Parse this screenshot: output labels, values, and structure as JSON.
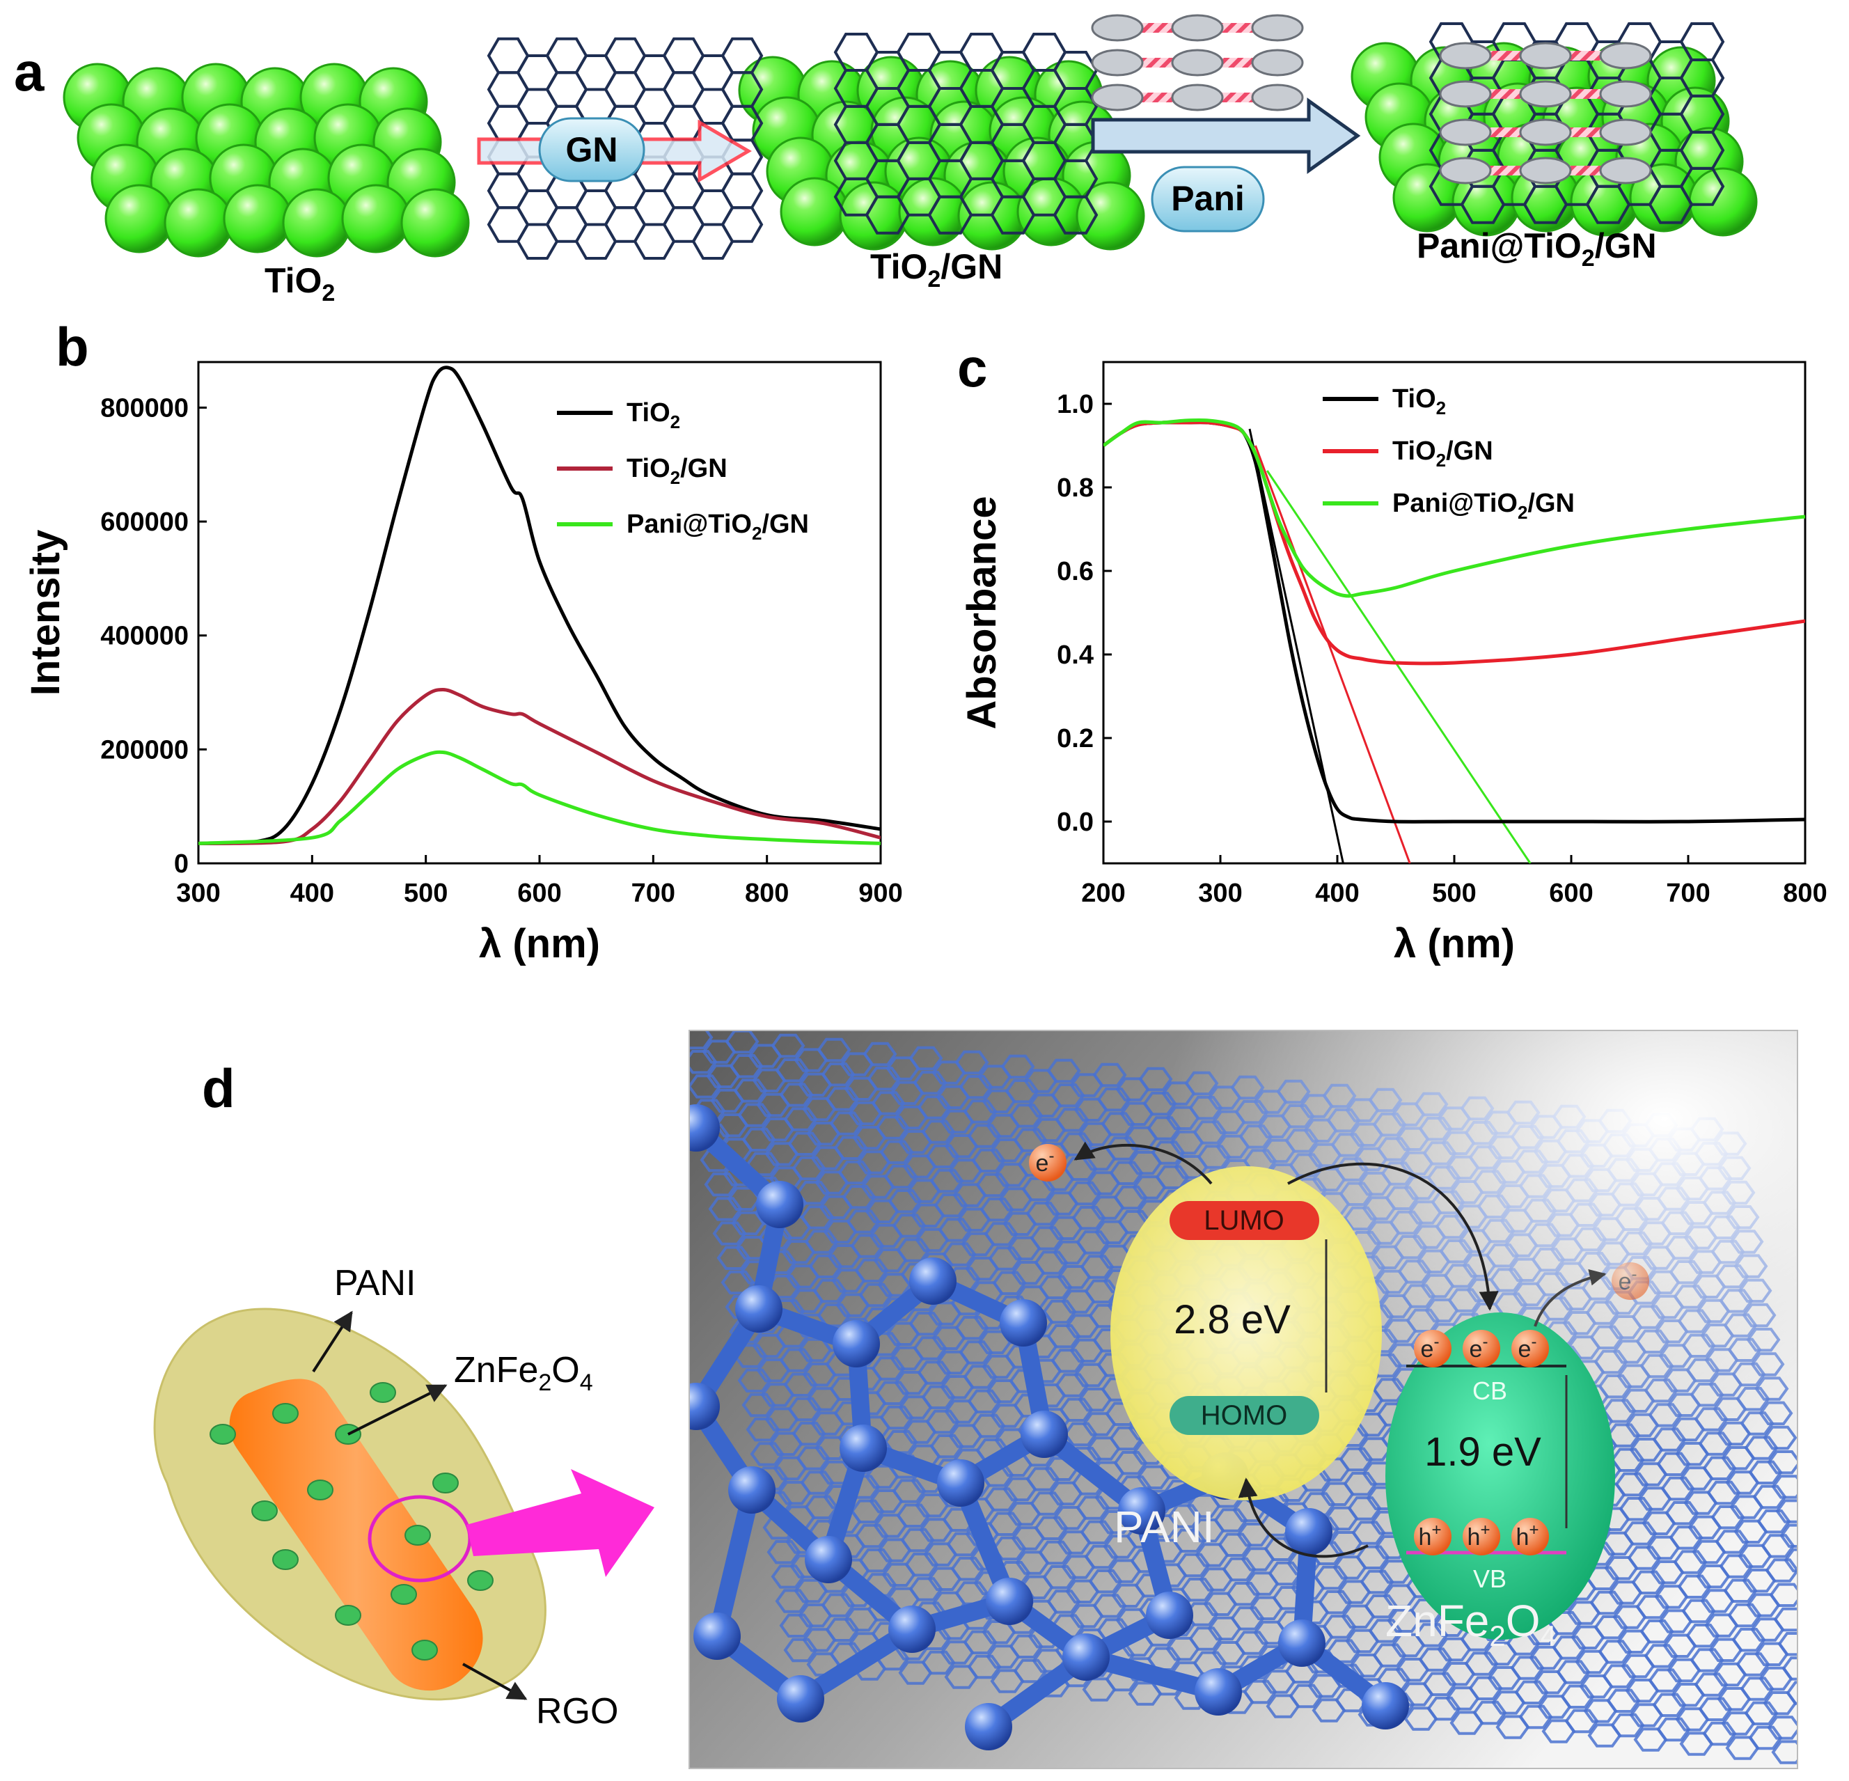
{
  "panel_a": {
    "letter": "a",
    "labels": {
      "tio2": "TiO",
      "tio2_gn": "TiO",
      "tio2_gn_suffix": "/GN",
      "pani_tio2_gn_prefix": "Pani@TiO",
      "pani_tio2_gn_suffix": "/GN",
      "sub2": "2"
    },
    "arrow1_label": "GN",
    "arrow2_label": "Pani",
    "colors": {
      "sphere": "#39e61c",
      "sphere_dark": "#1f8f10",
      "graphene": "#1e2e52",
      "pill": "#a6dcef",
      "arrow_fill": "#b9d7ee"
    }
  },
  "chart_data": [
    {
      "type": "line",
      "panel": "b",
      "xlabel": "λ (nm)",
      "ylabel": "Intensity",
      "xlim": [
        300,
        900
      ],
      "ylim": [
        0,
        880000
      ],
      "xticks": [
        "300",
        "400",
        "500",
        "600",
        "700",
        "800",
        "900"
      ],
      "yticks": [
        "0",
        "200000",
        "400000",
        "600000",
        "800000"
      ],
      "xtick_values": [
        300,
        400,
        500,
        600,
        700,
        800,
        900
      ],
      "ytick_values": [
        0,
        200000,
        400000,
        600000,
        800000
      ],
      "legend_position": "top-right",
      "series": [
        {
          "name": "TiO2",
          "legend_main": "TiO",
          "legend_sub": "2",
          "legend_suffix": "",
          "color": "#000000",
          "x": [
            300,
            350,
            375,
            400,
            425,
            450,
            475,
            500,
            510,
            520,
            530,
            550,
            575,
            585,
            600,
            625,
            650,
            675,
            700,
            725,
            750,
            800,
            850,
            900
          ],
          "y": [
            35000,
            38000,
            60000,
            140000,
            270000,
            440000,
            630000,
            810000,
            860000,
            870000,
            850000,
            770000,
            660000,
            640000,
            530000,
            420000,
            330000,
            240000,
            185000,
            150000,
            120000,
            85000,
            75000,
            60000
          ]
        },
        {
          "name": "TiO2/GN",
          "legend_main": "TiO",
          "legend_sub": "2",
          "legend_suffix": "/GN",
          "color": "#b0243a",
          "x": [
            300,
            375,
            400,
            425,
            450,
            475,
            500,
            515,
            530,
            550,
            575,
            585,
            600,
            650,
            700,
            750,
            800,
            850,
            900
          ],
          "y": [
            35000,
            38000,
            60000,
            110000,
            180000,
            250000,
            295000,
            305000,
            295000,
            275000,
            262000,
            262000,
            245000,
            195000,
            145000,
            110000,
            82000,
            70000,
            45000
          ]
        },
        {
          "name": "Pani@TiO2/GN",
          "legend_main": "Pani@TiO",
          "legend_sub": "2",
          "legend_suffix": "/GN",
          "color": "#39e61c",
          "x": [
            300,
            400,
            425,
            450,
            475,
            500,
            515,
            530,
            550,
            575,
            585,
            600,
            650,
            700,
            750,
            800,
            850,
            900
          ],
          "y": [
            35000,
            45000,
            75000,
            120000,
            165000,
            190000,
            195000,
            185000,
            165000,
            140000,
            138000,
            120000,
            85000,
            60000,
            48000,
            42000,
            38000,
            35000
          ]
        }
      ]
    },
    {
      "type": "line",
      "panel": "c",
      "xlabel": "λ (nm)",
      "ylabel": "Absorbance",
      "xlim": [
        200,
        800
      ],
      "ylim": [
        -0.1,
        1.1
      ],
      "xticks": [
        "200",
        "300",
        "400",
        "500",
        "600",
        "700",
        "800"
      ],
      "yticks": [
        "0.0",
        "0.2",
        "0.4",
        "0.6",
        "0.8",
        "1.0"
      ],
      "xtick_values": [
        200,
        300,
        400,
        500,
        600,
        700,
        800
      ],
      "ytick_values": [
        0.0,
        0.2,
        0.4,
        0.6,
        0.8,
        1.0
      ],
      "legend_position": "top-right",
      "series": [
        {
          "name": "TiO2",
          "legend_main": "TiO",
          "legend_sub": "2",
          "legend_suffix": "",
          "color": "#000000",
          "x": [
            200,
            215,
            230,
            250,
            270,
            290,
            310,
            320,
            330,
            340,
            350,
            360,
            370,
            380,
            390,
            400,
            410,
            420,
            450,
            500,
            600,
            700,
            800
          ],
          "y": [
            0.9,
            0.93,
            0.95,
            0.955,
            0.955,
            0.955,
            0.945,
            0.93,
            0.86,
            0.72,
            0.57,
            0.42,
            0.29,
            0.18,
            0.09,
            0.03,
            0.01,
            0.005,
            0.0,
            0.0,
            0.0,
            0.0,
            0.005
          ]
        },
        {
          "name": "TiO2/GN",
          "legend_main": "TiO",
          "legend_sub": "2",
          "legend_suffix": "/GN",
          "color": "#e8202b",
          "x": [
            200,
            215,
            230,
            250,
            270,
            290,
            310,
            320,
            330,
            340,
            350,
            360,
            370,
            380,
            390,
            400,
            410,
            420,
            430,
            450,
            500,
            600,
            700,
            800
          ],
          "y": [
            0.9,
            0.93,
            0.95,
            0.955,
            0.955,
            0.955,
            0.945,
            0.93,
            0.88,
            0.8,
            0.71,
            0.63,
            0.56,
            0.49,
            0.44,
            0.41,
            0.395,
            0.39,
            0.385,
            0.38,
            0.38,
            0.4,
            0.44,
            0.48
          ]
        },
        {
          "name": "Pani@TiO2/GN",
          "legend_main": "Pani@TiO",
          "legend_sub": "2",
          "legend_suffix": "/GN",
          "color": "#39e61c",
          "x": [
            200,
            215,
            230,
            250,
            270,
            290,
            310,
            320,
            330,
            340,
            350,
            360,
            370,
            380,
            390,
            400,
            410,
            420,
            450,
            500,
            600,
            700,
            800
          ],
          "y": [
            0.9,
            0.93,
            0.955,
            0.955,
            0.96,
            0.96,
            0.95,
            0.93,
            0.88,
            0.8,
            0.72,
            0.66,
            0.61,
            0.58,
            0.56,
            0.545,
            0.54,
            0.545,
            0.56,
            0.6,
            0.66,
            0.7,
            0.73
          ]
        }
      ],
      "tangent_lines": [
        {
          "color": "#000000",
          "x": [
            325,
            405
          ],
          "y": [
            0.94,
            -0.1
          ]
        },
        {
          "color": "#e8202b",
          "x": [
            330,
            462
          ],
          "y": [
            0.9,
            -0.1
          ]
        },
        {
          "color": "#39e61c",
          "x": [
            340,
            565
          ],
          "y": [
            0.84,
            -0.1
          ]
        }
      ]
    }
  ],
  "panel_d": {
    "letter": "d",
    "labels": {
      "pani": "PANI",
      "znfe": "ZnFe",
      "znfe_sub1": "2",
      "znfe_o": "O",
      "znfe_sub2": "4",
      "rgo": "RGO"
    },
    "right": {
      "electron": "e",
      "electron_sup": "-",
      "lumo": "LUMO",
      "homo": "HOMO",
      "pani_gap": "2.8 eV",
      "znfe_gap": "1.9 eV",
      "cb": "CB",
      "vb": "VB",
      "hole": "h",
      "hole_sup": "+",
      "pani_label": "PANI",
      "znfe_label": "ZnFe",
      "znfe_label_sub1": "2",
      "znfe_label_o": "O",
      "znfe_label_sub2": "4"
    },
    "colors": {
      "shell": "#d9d37c",
      "rod": "#ff8a1e",
      "dot": "#3fbf5a",
      "ring": "#e020c8",
      "arrow": "#ff2ad8",
      "graphene": "#3a66cc",
      "pani_ellipse": "#f2ef7a",
      "znfe_ellipse": "#1fcf86",
      "lumo": "#e8372a",
      "homo": "#3fae8c",
      "electron": "#f07a2c"
    }
  }
}
